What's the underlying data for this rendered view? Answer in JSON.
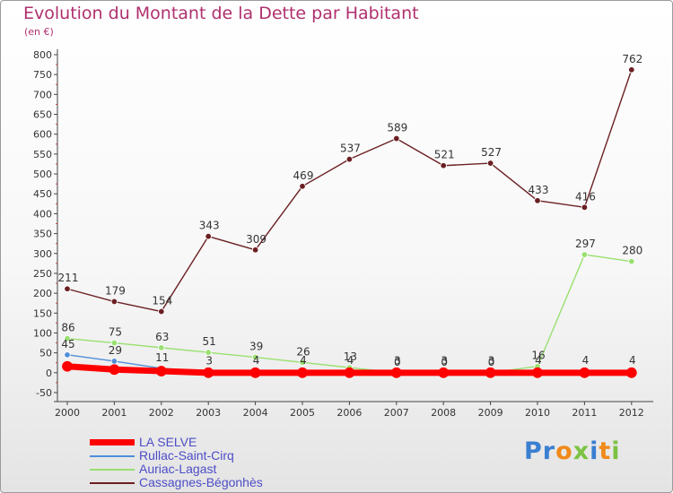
{
  "chart_data": {
    "type": "line",
    "title": "Evolution du Montant de la Dette par Habitant",
    "subtitle": "(en €)",
    "x": [
      "2000",
      "2001",
      "2002",
      "2003",
      "2004",
      "2005",
      "2006",
      "2007",
      "2008",
      "2009",
      "2010",
      "2011",
      "2012"
    ],
    "ylim": [
      -50,
      800
    ],
    "yticks": [
      -50,
      0,
      50,
      100,
      150,
      200,
      250,
      300,
      350,
      400,
      450,
      500,
      550,
      600,
      650,
      700,
      750,
      800
    ],
    "grid": false,
    "legend_position": "bottom-left",
    "series": [
      {
        "name": "LA SELVE",
        "color": "#ff0000",
        "values": [
          16,
          8,
          4,
          0,
          0,
          0,
          0,
          0,
          0,
          0,
          0,
          0,
          0
        ],
        "labels": false
      },
      {
        "name": "Rullac-Saint-Cirq",
        "color": "#4f8fd8",
        "values": [
          45,
          29,
          11,
          3,
          4,
          4,
          4,
          3,
          3,
          3,
          4,
          4,
          4
        ],
        "labels": true
      },
      {
        "name": "Auriac-Lagast",
        "color": "#99e070",
        "values": [
          86,
          75,
          63,
          51,
          39,
          26,
          13,
          0,
          0,
          0,
          16,
          297,
          280
        ],
        "labels": true
      },
      {
        "name": "Cassagnes-Bégonhès",
        "color": "#6b1f22",
        "values": [
          211,
          179,
          154,
          343,
          309,
          469,
          537,
          589,
          521,
          527,
          433,
          416,
          762
        ],
        "labels": true
      }
    ]
  },
  "logo": {
    "letters": [
      "P",
      "r",
      "o",
      "x",
      "i",
      "t",
      "i"
    ],
    "colors": [
      "#3a7fd0",
      "#3a7fd0",
      "#f08a1a",
      "#7cc242",
      "#3a7fd0",
      "#f08a1a",
      "#7cc242"
    ]
  }
}
